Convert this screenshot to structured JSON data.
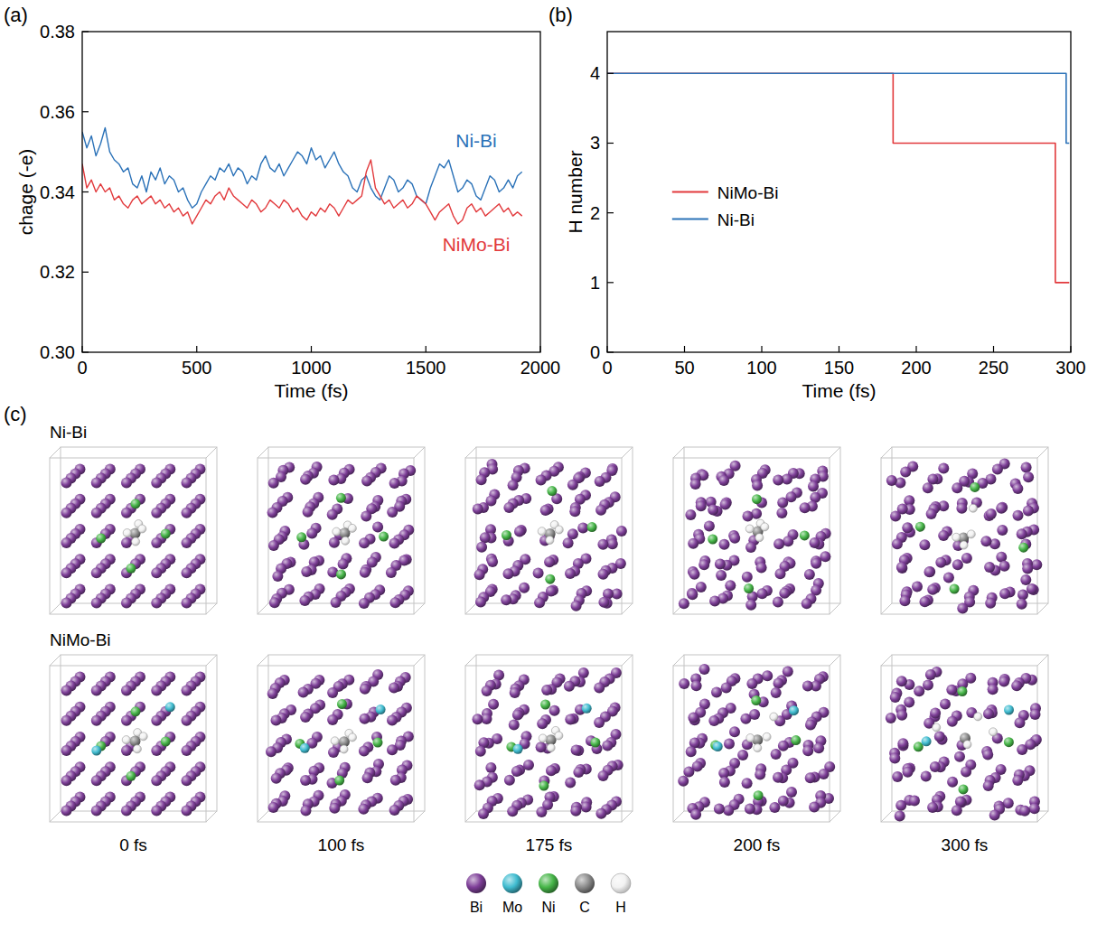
{
  "chart_data": [
    {
      "type": "line",
      "panel": "(a)",
      "x_label": "Time (fs)",
      "y_label": "chage (-e)",
      "x": [
        0,
        20,
        40,
        60,
        80,
        100,
        120,
        140,
        160,
        180,
        200,
        220,
        240,
        260,
        280,
        300,
        320,
        340,
        360,
        380,
        400,
        420,
        440,
        460,
        480,
        500,
        520,
        540,
        560,
        580,
        600,
        620,
        640,
        660,
        680,
        700,
        720,
        740,
        760,
        780,
        800,
        820,
        840,
        860,
        880,
        900,
        920,
        940,
        960,
        980,
        1000,
        1020,
        1040,
        1060,
        1080,
        1100,
        1120,
        1140,
        1160,
        1180,
        1200,
        1220,
        1240,
        1260,
        1280,
        1300,
        1320,
        1340,
        1360,
        1380,
        1400,
        1420,
        1440,
        1460,
        1480,
        1500,
        1520,
        1540,
        1560,
        1580,
        1600,
        1620,
        1640,
        1660,
        1680,
        1700,
        1720,
        1740,
        1760,
        1780,
        1800,
        1820,
        1840,
        1860,
        1880,
        1900,
        1920
      ],
      "xlim": [
        0,
        2000
      ],
      "xticks": [
        0,
        500,
        1000,
        1500,
        2000
      ],
      "ylim": [
        0.3,
        0.38
      ],
      "yticks": [
        {
          "value": 0.3,
          "label": "0.30"
        },
        0.32,
        0.34,
        0.36,
        0.38
      ],
      "series": [
        {
          "name": "Ni-Bi",
          "color": "#2b72b8",
          "values": [
            0.355,
            0.351,
            0.354,
            0.349,
            0.352,
            0.356,
            0.35,
            0.348,
            0.347,
            0.345,
            0.346,
            0.342,
            0.341,
            0.344,
            0.34,
            0.345,
            0.343,
            0.346,
            0.342,
            0.344,
            0.343,
            0.34,
            0.341,
            0.338,
            0.336,
            0.337,
            0.34,
            0.342,
            0.344,
            0.343,
            0.346,
            0.345,
            0.347,
            0.344,
            0.346,
            0.345,
            0.342,
            0.344,
            0.343,
            0.347,
            0.349,
            0.346,
            0.345,
            0.347,
            0.344,
            0.346,
            0.348,
            0.35,
            0.349,
            0.347,
            0.351,
            0.348,
            0.349,
            0.346,
            0.348,
            0.35,
            0.347,
            0.345,
            0.344,
            0.341,
            0.34,
            0.343,
            0.344,
            0.341,
            0.339,
            0.338,
            0.341,
            0.344,
            0.343,
            0.34,
            0.341,
            0.343,
            0.342,
            0.339,
            0.338,
            0.337,
            0.341,
            0.344,
            0.347,
            0.346,
            0.348,
            0.344,
            0.34,
            0.341,
            0.343,
            0.342,
            0.339,
            0.338,
            0.341,
            0.344,
            0.343,
            0.34,
            0.341,
            0.343,
            0.341,
            0.344,
            0.345
          ]
        },
        {
          "name": "NiMo-Bi",
          "color": "#e2393c",
          "values": [
            0.347,
            0.341,
            0.343,
            0.34,
            0.342,
            0.34,
            0.341,
            0.338,
            0.339,
            0.337,
            0.336,
            0.338,
            0.339,
            0.337,
            0.338,
            0.339,
            0.337,
            0.338,
            0.336,
            0.337,
            0.335,
            0.336,
            0.334,
            0.335,
            0.332,
            0.334,
            0.336,
            0.338,
            0.337,
            0.339,
            0.34,
            0.338,
            0.341,
            0.339,
            0.338,
            0.337,
            0.336,
            0.338,
            0.337,
            0.335,
            0.336,
            0.338,
            0.337,
            0.336,
            0.338,
            0.337,
            0.335,
            0.336,
            0.334,
            0.333,
            0.335,
            0.334,
            0.336,
            0.335,
            0.337,
            0.336,
            0.334,
            0.336,
            0.338,
            0.337,
            0.338,
            0.339,
            0.345,
            0.348,
            0.341,
            0.339,
            0.337,
            0.338,
            0.336,
            0.337,
            0.338,
            0.336,
            0.337,
            0.339,
            0.338,
            0.337,
            0.335,
            0.333,
            0.335,
            0.336,
            0.337,
            0.334,
            0.332,
            0.333,
            0.336,
            0.337,
            0.335,
            0.336,
            0.334,
            0.335,
            0.336,
            0.337,
            0.335,
            0.336,
            0.334,
            0.335,
            0.334
          ]
        }
      ]
    },
    {
      "type": "line",
      "panel": "(b)",
      "x_label": "Time (fs)",
      "y_label": "H number",
      "xlim": [
        0,
        300
      ],
      "xticks": [
        0,
        50,
        100,
        150,
        200,
        250,
        300
      ],
      "ylim": [
        0,
        4.6
      ],
      "yticks": [
        0,
        1,
        2,
        3,
        4
      ],
      "line_style": "step",
      "legend": "left",
      "series": [
        {
          "name": "NiMo-Bi",
          "color": "#e2393c",
          "x": [
            0,
            185,
            290,
            299
          ],
          "values": [
            4,
            3,
            1,
            1
          ]
        },
        {
          "name": "Ni-Bi",
          "color": "#2b72b8",
          "x": [
            0,
            297,
            299
          ],
          "values": [
            4,
            3,
            3
          ]
        }
      ]
    }
  ],
  "snapshots": {
    "panel": "(c)",
    "rows": [
      "Ni-Bi",
      "NiMo-Bi"
    ],
    "times": [
      "0 fs",
      "100 fs",
      "175 fs",
      "200 fs",
      "300 fs"
    ],
    "atoms": [
      {
        "name": "Bi",
        "color": "#7e3f98"
      },
      {
        "name": "Mo",
        "color": "#40bcd0"
      },
      {
        "name": "Ni",
        "color": "#47b649"
      },
      {
        "name": "C",
        "color": "#8c8c8c"
      },
      {
        "name": "H",
        "color": "#f2f2f2"
      }
    ]
  }
}
